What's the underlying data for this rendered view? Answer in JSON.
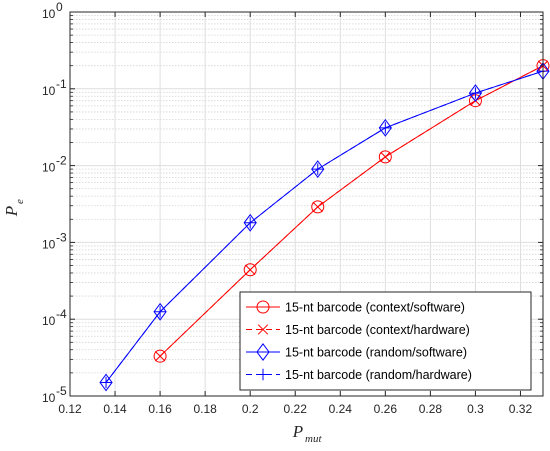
{
  "chart_data": {
    "type": "line",
    "title": "",
    "yscale": "log",
    "xlim": [
      0.12,
      0.33
    ],
    "ylim": [
      1e-05,
      1
    ],
    "grid": true,
    "minor_grid": true,
    "legend_position": "bottom-right",
    "xlabel": {
      "main": "P",
      "sub": "mut"
    },
    "ylabel": {
      "main": "P",
      "sub": "e"
    },
    "x_ticks": [
      0.12,
      0.14,
      0.16,
      0.18,
      0.2,
      0.22,
      0.24,
      0.26,
      0.28,
      0.3,
      0.32
    ],
    "x_tick_labels": [
      "0.12",
      "0.14",
      "0.16",
      "0.18",
      "0.2",
      "0.22",
      "0.24",
      "0.26",
      "0.28",
      "0.3",
      "0.32"
    ],
    "y_ticks": [
      {
        "exp": -5,
        "base": "10",
        "power": "-5"
      },
      {
        "exp": -4,
        "base": "10",
        "power": "-4"
      },
      {
        "exp": -3,
        "base": "10",
        "power": "-3"
      },
      {
        "exp": -2,
        "base": "10",
        "power": "-2"
      },
      {
        "exp": -1,
        "base": "10",
        "power": "-1"
      },
      {
        "exp": 0,
        "base": "10",
        "power": "0"
      }
    ],
    "series": [
      {
        "name": "15-nt barcode (context/software)",
        "color": "#ff0000",
        "line": "solid",
        "marker": "circle",
        "x": [
          0.16,
          0.2,
          0.23,
          0.26,
          0.3,
          0.33
        ],
        "y": [
          3.3e-05,
          0.00044,
          0.0029,
          0.013,
          0.07,
          0.2
        ]
      },
      {
        "name": "15-nt barcode (context/hardware)",
        "color": "#ff0000",
        "line": "dashed",
        "marker": "x",
        "x": [
          0.16,
          0.2,
          0.23,
          0.26,
          0.3,
          0.33
        ],
        "y": [
          3.3e-05,
          0.00044,
          0.0029,
          0.013,
          0.07,
          0.2
        ]
      },
      {
        "name": "15-nt barcode (random/software)",
        "color": "#0000ff",
        "line": "solid",
        "marker": "diamond",
        "x": [
          0.136,
          0.16,
          0.2,
          0.23,
          0.26,
          0.3,
          0.33
        ],
        "y": [
          1.5e-05,
          0.000125,
          0.0018,
          0.009,
          0.031,
          0.088,
          0.17
        ]
      },
      {
        "name": "15-nt barcode (random/hardware)",
        "color": "#0000ff",
        "line": "dashed",
        "marker": "plus",
        "x": [
          0.136,
          0.16,
          0.2,
          0.23,
          0.26,
          0.3,
          0.33
        ],
        "y": [
          1.5e-05,
          0.000125,
          0.0018,
          0.009,
          0.031,
          0.088,
          0.17
        ]
      }
    ]
  }
}
